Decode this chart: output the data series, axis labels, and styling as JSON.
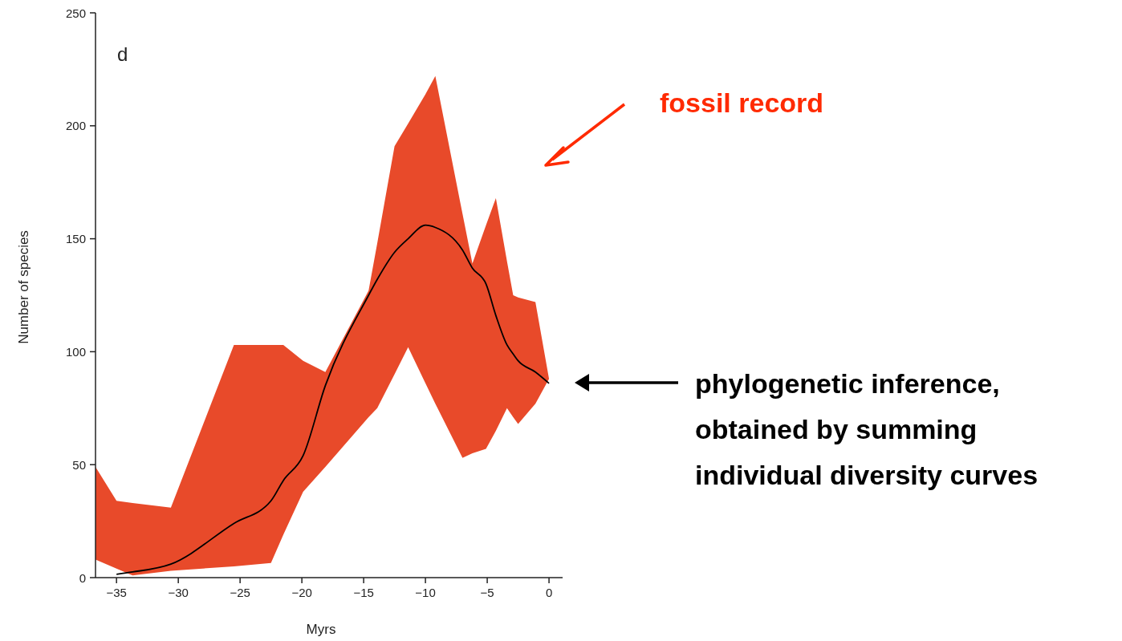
{
  "chart_data": {
    "type": "line",
    "xlabel": "Myrs",
    "ylabel": "Number of species",
    "annotations": [
      "d",
      "fossil record",
      "phylogenetic inference,\nobtained by summing\nindividual diversity curves"
    ],
    "x": [
      -36.7,
      -35,
      -33.7,
      -30.6,
      -25.5,
      -22.5,
      -21.5,
      -19.9,
      -18.1,
      -14.6,
      -13.9,
      -12.5,
      -11.4,
      -10,
      -9.2,
      -7,
      -6.2,
      -5.1,
      -4.3,
      -3.4,
      -2.9,
      -2.5,
      -1.1,
      0
    ],
    "series": [
      {
        "color": "#000000",
        "values": [
          null,
          1.5,
          2.5,
          6,
          24,
          34,
          43,
          54,
          85,
          125,
          132,
          144,
          150,
          156,
          155,
          145,
          137,
          130,
          116,
          103,
          99,
          96,
          91,
          86
        ],
        "lower": [
          8,
          4,
          1,
          3,
          5,
          6.5,
          19,
          38,
          49,
          71,
          75,
          90,
          102,
          86,
          77,
          53,
          55,
          57,
          65,
          75,
          71,
          68,
          77,
          88
        ],
        "upper": [
          49,
          34,
          33,
          31,
          103,
          103,
          103,
          96,
          91,
          127,
          148,
          191,
          201,
          214,
          222,
          161,
          139,
          156,
          168,
          140,
          125,
          124,
          122,
          88
        ]
      }
    ],
    "xlim": [
      -36.7,
      1.1
    ],
    "ylim": [
      0,
      250
    ],
    "xticks": [
      {
        "value": -35,
        "label": "−35"
      },
      {
        "value": -30,
        "label": "−30"
      },
      {
        "value": -25,
        "label": "−25"
      },
      {
        "value": -20,
        "label": "−20"
      },
      {
        "value": -15,
        "label": "−15"
      },
      {
        "value": -10,
        "label": "−10"
      },
      {
        "value": -5,
        "label": "−5"
      },
      0
    ],
    "yticks": [
      0,
      50,
      100,
      150,
      200,
      250
    ]
  }
}
